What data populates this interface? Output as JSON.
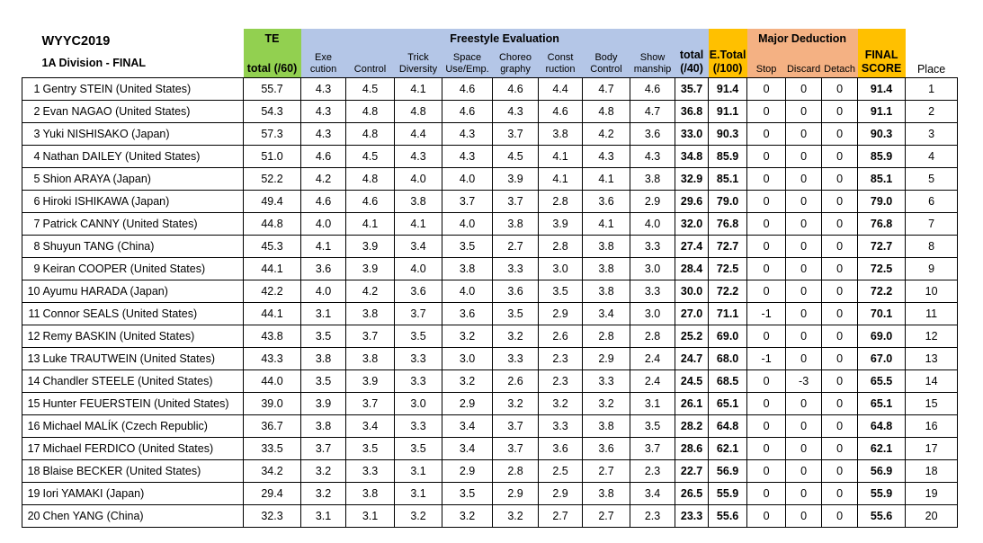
{
  "title": "WYYC2019",
  "subtitle": "1A Division - FINAL",
  "groups": {
    "te": "TE",
    "freestyle": "Freestyle Evaluation",
    "major_deduction": "Major Deduction"
  },
  "headers": {
    "te_total": "total (/60)",
    "execution": "Exe cution",
    "control": "Control",
    "trick_diversity": "Trick Diversity",
    "space_use": "Space Use/Emp.",
    "choreography": "Choreo graphy",
    "construction": "Const ruction",
    "body_control": "Body Control",
    "showmanship": "Show manship",
    "fe_total": "total (/40)",
    "e_total": "E.Total (/100)",
    "stop": "Stop",
    "discard": "Discard",
    "detach": "Detach",
    "final_score": "FINAL SCORE",
    "place": "Place"
  },
  "rows": [
    {
      "rank": "1",
      "name": "Gentry STEIN (United States)",
      "te": "55.7",
      "exe": "4.3",
      "control": "4.5",
      "trick": "4.1",
      "space": "4.6",
      "choreo": "4.6",
      "const": "4.4",
      "body": "4.7",
      "show": "4.6",
      "fe_total": "35.7",
      "e_total": "91.4",
      "stop": "0",
      "discard": "0",
      "detach": "0",
      "final": "91.4",
      "place": "1"
    },
    {
      "rank": "2",
      "name": "Evan NAGAO (United States)",
      "te": "54.3",
      "exe": "4.3",
      "control": "4.8",
      "trick": "4.8",
      "space": "4.6",
      "choreo": "4.3",
      "const": "4.6",
      "body": "4.8",
      "show": "4.7",
      "fe_total": "36.8",
      "e_total": "91.1",
      "stop": "0",
      "discard": "0",
      "detach": "0",
      "final": "91.1",
      "place": "2"
    },
    {
      "rank": "3",
      "name": "Yuki NISHISAKO (Japan)",
      "te": "57.3",
      "exe": "4.3",
      "control": "4.8",
      "trick": "4.4",
      "space": "4.3",
      "choreo": "3.7",
      "const": "3.8",
      "body": "4.2",
      "show": "3.6",
      "fe_total": "33.0",
      "e_total": "90.3",
      "stop": "0",
      "discard": "0",
      "detach": "0",
      "final": "90.3",
      "place": "3"
    },
    {
      "rank": "4",
      "name": "Nathan DAILEY (United States)",
      "te": "51.0",
      "exe": "4.6",
      "control": "4.5",
      "trick": "4.3",
      "space": "4.3",
      "choreo": "4.5",
      "const": "4.1",
      "body": "4.3",
      "show": "4.3",
      "fe_total": "34.8",
      "e_total": "85.9",
      "stop": "0",
      "discard": "0",
      "detach": "0",
      "final": "85.9",
      "place": "4"
    },
    {
      "rank": "5",
      "name": "Shion ARAYA (Japan)",
      "te": "52.2",
      "exe": "4.2",
      "control": "4.8",
      "trick": "4.0",
      "space": "4.0",
      "choreo": "3.9",
      "const": "4.1",
      "body": "4.1",
      "show": "3.8",
      "fe_total": "32.9",
      "e_total": "85.1",
      "stop": "0",
      "discard": "0",
      "detach": "0",
      "final": "85.1",
      "place": "5"
    },
    {
      "rank": "6",
      "name": "Hiroki ISHIKAWA (Japan)",
      "te": "49.4",
      "exe": "4.6",
      "control": "4.6",
      "trick": "3.8",
      "space": "3.7",
      "choreo": "3.7",
      "const": "2.8",
      "body": "3.6",
      "show": "2.9",
      "fe_total": "29.6",
      "e_total": "79.0",
      "stop": "0",
      "discard": "0",
      "detach": "0",
      "final": "79.0",
      "place": "6"
    },
    {
      "rank": "7",
      "name": "Patrick CANNY (United States)",
      "te": "44.8",
      "exe": "4.0",
      "control": "4.1",
      "trick": "4.1",
      "space": "4.0",
      "choreo": "3.8",
      "const": "3.9",
      "body": "4.1",
      "show": "4.0",
      "fe_total": "32.0",
      "e_total": "76.8",
      "stop": "0",
      "discard": "0",
      "detach": "0",
      "final": "76.8",
      "place": "7"
    },
    {
      "rank": "8",
      "name": "Shuyun TANG (China)",
      "te": "45.3",
      "exe": "4.1",
      "control": "3.9",
      "trick": "3.4",
      "space": "3.5",
      "choreo": "2.7",
      "const": "2.8",
      "body": "3.8",
      "show": "3.3",
      "fe_total": "27.4",
      "e_total": "72.7",
      "stop": "0",
      "discard": "0",
      "detach": "0",
      "final": "72.7",
      "place": "8"
    },
    {
      "rank": "9",
      "name": "Keiran COOPER (United States)",
      "te": "44.1",
      "exe": "3.6",
      "control": "3.9",
      "trick": "4.0",
      "space": "3.8",
      "choreo": "3.3",
      "const": "3.0",
      "body": "3.8",
      "show": "3.0",
      "fe_total": "28.4",
      "e_total": "72.5",
      "stop": "0",
      "discard": "0",
      "detach": "0",
      "final": "72.5",
      "place": "9"
    },
    {
      "rank": "10",
      "name": "Ayumu HARADA (Japan)",
      "te": "42.2",
      "exe": "4.0",
      "control": "4.2",
      "trick": "3.6",
      "space": "4.0",
      "choreo": "3.6",
      "const": "3.5",
      "body": "3.8",
      "show": "3.3",
      "fe_total": "30.0",
      "e_total": "72.2",
      "stop": "0",
      "discard": "0",
      "detach": "0",
      "final": "72.2",
      "place": "10"
    },
    {
      "rank": "11",
      "name": "Connor SEALS (United States)",
      "te": "44.1",
      "exe": "3.1",
      "control": "3.8",
      "trick": "3.7",
      "space": "3.6",
      "choreo": "3.5",
      "const": "2.9",
      "body": "3.4",
      "show": "3.0",
      "fe_total": "27.0",
      "e_total": "71.1",
      "stop": "-1",
      "discard": "0",
      "detach": "0",
      "final": "70.1",
      "place": "11"
    },
    {
      "rank": "12",
      "name": "Remy BASKIN (United States)",
      "te": "43.8",
      "exe": "3.5",
      "control": "3.7",
      "trick": "3.5",
      "space": "3.2",
      "choreo": "3.2",
      "const": "2.6",
      "body": "2.8",
      "show": "2.8",
      "fe_total": "25.2",
      "e_total": "69.0",
      "stop": "0",
      "discard": "0",
      "detach": "0",
      "final": "69.0",
      "place": "12"
    },
    {
      "rank": "13",
      "name": "Luke TRAUTWEIN (United States)",
      "te": "43.3",
      "exe": "3.8",
      "control": "3.8",
      "trick": "3.3",
      "space": "3.0",
      "choreo": "3.3",
      "const": "2.3",
      "body": "2.9",
      "show": "2.4",
      "fe_total": "24.7",
      "e_total": "68.0",
      "stop": "-1",
      "discard": "0",
      "detach": "0",
      "final": "67.0",
      "place": "13"
    },
    {
      "rank": "14",
      "name": "Chandler STEELE (United States)",
      "te": "44.0",
      "exe": "3.5",
      "control": "3.9",
      "trick": "3.3",
      "space": "3.2",
      "choreo": "2.6",
      "const": "2.3",
      "body": "3.3",
      "show": "2.4",
      "fe_total": "24.5",
      "e_total": "68.5",
      "stop": "0",
      "discard": "-3",
      "detach": "0",
      "final": "65.5",
      "place": "14"
    },
    {
      "rank": "15",
      "name": "Hunter FEUERSTEIN (United States)",
      "te": "39.0",
      "exe": "3.9",
      "control": "3.7",
      "trick": "3.0",
      "space": "2.9",
      "choreo": "3.2",
      "const": "3.2",
      "body": "3.2",
      "show": "3.1",
      "fe_total": "26.1",
      "e_total": "65.1",
      "stop": "0",
      "discard": "0",
      "detach": "0",
      "final": "65.1",
      "place": "15"
    },
    {
      "rank": "16",
      "name": "Michael MALÍK (Czech Republic)",
      "te": "36.7",
      "exe": "3.8",
      "control": "3.4",
      "trick": "3.3",
      "space": "3.4",
      "choreo": "3.7",
      "const": "3.3",
      "body": "3.8",
      "show": "3.5",
      "fe_total": "28.2",
      "e_total": "64.8",
      "stop": "0",
      "discard": "0",
      "detach": "0",
      "final": "64.8",
      "place": "16"
    },
    {
      "rank": "17",
      "name": "Michael FERDICO (United States)",
      "te": "33.5",
      "exe": "3.7",
      "control": "3.5",
      "trick": "3.5",
      "space": "3.4",
      "choreo": "3.7",
      "const": "3.6",
      "body": "3.6",
      "show": "3.7",
      "fe_total": "28.6",
      "e_total": "62.1",
      "stop": "0",
      "discard": "0",
      "detach": "0",
      "final": "62.1",
      "place": "17"
    },
    {
      "rank": "18",
      "name": "Blaise BECKER (United States)",
      "te": "34.2",
      "exe": "3.2",
      "control": "3.3",
      "trick": "3.1",
      "space": "2.9",
      "choreo": "2.8",
      "const": "2.5",
      "body": "2.7",
      "show": "2.3",
      "fe_total": "22.7",
      "e_total": "56.9",
      "stop": "0",
      "discard": "0",
      "detach": "0",
      "final": "56.9",
      "place": "18"
    },
    {
      "rank": "19",
      "name": "Iori YAMAKI (Japan)",
      "te": "29.4",
      "exe": "3.2",
      "control": "3.8",
      "trick": "3.1",
      "space": "3.5",
      "choreo": "2.9",
      "const": "2.9",
      "body": "3.8",
      "show": "3.4",
      "fe_total": "26.5",
      "e_total": "55.9",
      "stop": "0",
      "discard": "0",
      "detach": "0",
      "final": "55.9",
      "place": "19"
    },
    {
      "rank": "20",
      "name": "Chen YANG (China)",
      "te": "32.3",
      "exe": "3.1",
      "control": "3.1",
      "trick": "3.2",
      "space": "3.2",
      "choreo": "3.2",
      "const": "2.7",
      "body": "2.7",
      "show": "2.3",
      "fe_total": "23.3",
      "e_total": "55.6",
      "stop": "0",
      "discard": "0",
      "detach": "0",
      "final": "55.6",
      "place": "20"
    }
  ]
}
